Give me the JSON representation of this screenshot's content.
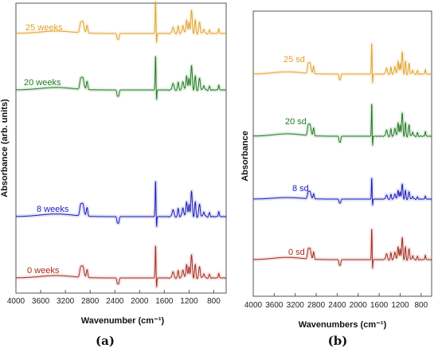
{
  "colors": {
    "wk0": "#a52a1f",
    "wk8": "#1a1ab8",
    "wk20": "#1f7a1f",
    "wk25": "#e0a12a"
  },
  "chart_data": [
    {
      "type": "line",
      "panel": "a",
      "caption": "(a)",
      "xlabel": "Wavenumber (cm⁻¹)",
      "ylabel": "Absorbance (arb. units)",
      "xlim": [
        4000,
        600
      ],
      "x_reversed": true,
      "xticks": [
        "4000",
        "3600",
        "3200",
        "2800",
        "2400",
        "2000",
        "1600",
        "1200",
        "800"
      ],
      "grid": false,
      "series": [
        {
          "name": "25 weeks",
          "color": "#e0a12a"
        },
        {
          "name": "20 weeks",
          "color": "#1f7a1f"
        },
        {
          "name": "8 weeks",
          "color": "#1a1ab8"
        },
        {
          "name": "0 weeks",
          "color": "#a52a1f"
        }
      ]
    },
    {
      "type": "line",
      "panel": "b",
      "caption": "(b)",
      "xlabel": "Wavenumbers (cm⁻¹)",
      "ylabel": "Absorbance",
      "xlim": [
        4000,
        600
      ],
      "x_reversed": true,
      "xticks": [
        "4000",
        "3600",
        "3200",
        "2800",
        "2400",
        "2000",
        "1600",
        "1200",
        "800"
      ],
      "grid": false,
      "series": [
        {
          "name": "25 sd",
          "color": "#e0a12a"
        },
        {
          "name": "20 sd",
          "color": "#1f7a1f"
        },
        {
          "name": "8 sd",
          "color": "#1a1ab8"
        },
        {
          "name": "0 sd",
          "color": "#a52a1f"
        }
      ]
    }
  ]
}
